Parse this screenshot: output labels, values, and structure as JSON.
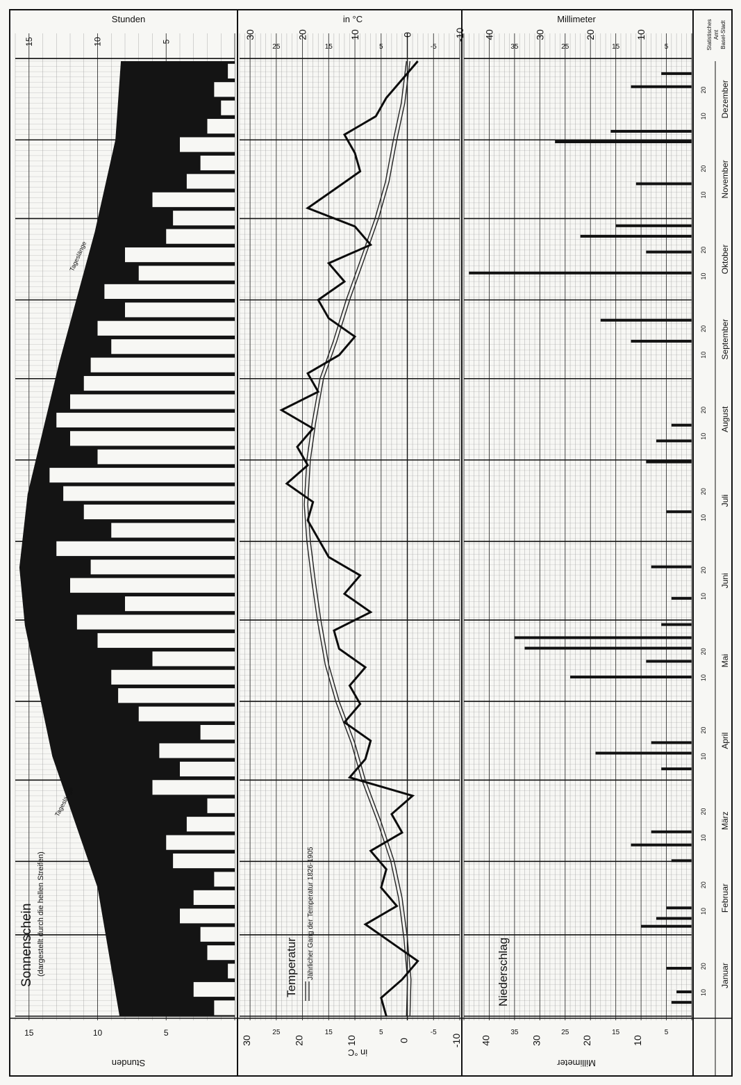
{
  "chart_data": [
    {
      "panel": "sunshine",
      "type": "bar",
      "title": "Sonnenschein",
      "subtitle": "(dargestellt durch die hellen Streifen)",
      "axis_title": "Stunden",
      "annotation_left": "Tageslänge",
      "annotation_right": "Tageslänge",
      "range": [
        0,
        16
      ],
      "major_ticks": [
        5,
        10,
        15
      ],
      "grid": true,
      "day_length": [
        {
          "day": 1,
          "hours": 8.4
        },
        {
          "day": 50,
          "hours": 10.0
        },
        {
          "day": 100,
          "hours": 13.3
        },
        {
          "day": 150,
          "hours": 15.3
        },
        {
          "day": 172,
          "hours": 15.7
        },
        {
          "day": 200,
          "hours": 15.1
        },
        {
          "day": 250,
          "hours": 12.8
        },
        {
          "day": 300,
          "hours": 10.2
        },
        {
          "day": 335,
          "hours": 8.7
        },
        {
          "day": 365,
          "hours": 8.3
        }
      ],
      "sunshine_hours_weekly": [
        1.5,
        3,
        0.5,
        2,
        2.5,
        4,
        3,
        1.5,
        4.5,
        5,
        3.5,
        2,
        6,
        4,
        5.5,
        2.5,
        7,
        8.5,
        9,
        6,
        10,
        11.5,
        8,
        12,
        10.5,
        13,
        9,
        11,
        12.5,
        13.5,
        10,
        12,
        13,
        12,
        11,
        10.5,
        9,
        10,
        8,
        9.5,
        7,
        8,
        5,
        4.5,
        6,
        3.5,
        2.5,
        4,
        2,
        1,
        1.5,
        0.5
      ]
    },
    {
      "panel": "temperature",
      "type": "line",
      "title": "Temperatur",
      "axis_title": "in °C",
      "legend": "Jährlicher Gang der Temperatur 1826-1905",
      "range": [
        -10,
        32
      ],
      "major_ticks": [
        -10,
        0,
        10,
        20,
        30
      ],
      "minor_labels": [
        -5,
        5,
        15,
        25
      ],
      "grid": true,
      "series": [
        {
          "name": "daily",
          "x": [
            1,
            8,
            15,
            22,
            29,
            36,
            43,
            50,
            57,
            64,
            71,
            78,
            85,
            92,
            99,
            106,
            113,
            120,
            127,
            134,
            141,
            148,
            155,
            162,
            169,
            176,
            183,
            190,
            197,
            204,
            211,
            218,
            225,
            232,
            239,
            246,
            253,
            260,
            267,
            274,
            281,
            288,
            295,
            302,
            309,
            316,
            323,
            330,
            337,
            344,
            351,
            358,
            365
          ],
          "y": [
            4,
            5,
            1,
            -2,
            3,
            8,
            2,
            5,
            4,
            7,
            1,
            3,
            -1,
            11,
            8,
            7,
            12,
            9,
            11,
            8,
            13,
            14,
            7,
            12,
            9,
            15,
            17,
            19,
            18,
            23,
            19,
            21,
            18,
            24,
            17,
            19,
            13,
            10,
            15,
            17,
            12,
            15,
            7,
            10,
            19,
            14,
            9,
            10,
            12,
            6,
            4,
            1,
            -2
          ]
        },
        {
          "name": "Jährlicher Gang der Temperatur 1826-1905",
          "x": [
            1,
            15,
            31,
            46,
            60,
            75,
            91,
            105,
            121,
            135,
            152,
            166,
            182,
            196,
            213,
            227,
            244,
            258,
            274,
            288,
            305,
            319,
            335,
            349,
            365
          ],
          "y": [
            -0.5,
            -0.7,
            0,
            1,
            2.5,
            5,
            8,
            10,
            13,
            15,
            16.5,
            17.5,
            18.5,
            19,
            18.5,
            17.5,
            16,
            13.5,
            11,
            8.5,
            5.5,
            3.5,
            2,
            0.5,
            -0.5
          ]
        }
      ]
    },
    {
      "panel": "precipitation",
      "type": "bar",
      "title": "Niederschlag",
      "axis_title": "Millimeter",
      "range": [
        0,
        45
      ],
      "major_ticks": [
        10,
        20,
        30,
        40
      ],
      "minor_labels": [
        5,
        15,
        25,
        35
      ],
      "grid": true,
      "rain_events": [
        {
          "day": 6,
          "mm": 4
        },
        {
          "day": 10,
          "mm": 3
        },
        {
          "day": 19,
          "mm": 5
        },
        {
          "day": 35,
          "mm": 10
        },
        {
          "day": 38,
          "mm": 7
        },
        {
          "day": 42,
          "mm": 5
        },
        {
          "day": 60,
          "mm": 4
        },
        {
          "day": 66,
          "mm": 12
        },
        {
          "day": 71,
          "mm": 8
        },
        {
          "day": 95,
          "mm": 6
        },
        {
          "day": 101,
          "mm": 19
        },
        {
          "day": 105,
          "mm": 8
        },
        {
          "day": 130,
          "mm": 24
        },
        {
          "day": 136,
          "mm": 9
        },
        {
          "day": 141,
          "mm": 33
        },
        {
          "day": 145,
          "mm": 35
        },
        {
          "day": 150,
          "mm": 6
        },
        {
          "day": 160,
          "mm": 4
        },
        {
          "day": 172,
          "mm": 8
        },
        {
          "day": 193,
          "mm": 5
        },
        {
          "day": 212,
          "mm": 9
        },
        {
          "day": 220,
          "mm": 7
        },
        {
          "day": 226,
          "mm": 4
        },
        {
          "day": 258,
          "mm": 12
        },
        {
          "day": 266,
          "mm": 18
        },
        {
          "day": 284,
          "mm": 44
        },
        {
          "day": 292,
          "mm": 9
        },
        {
          "day": 298,
          "mm": 22
        },
        {
          "day": 302,
          "mm": 15
        },
        {
          "day": 318,
          "mm": 11
        },
        {
          "day": 334,
          "mm": 27
        },
        {
          "day": 338,
          "mm": 16
        },
        {
          "day": 355,
          "mm": 12
        },
        {
          "day": 360,
          "mm": 6
        }
      ]
    }
  ],
  "months": [
    {
      "name": "Januar",
      "days": 31
    },
    {
      "name": "Februar",
      "days": 28
    },
    {
      "name": "März",
      "days": 31
    },
    {
      "name": "April",
      "days": 30
    },
    {
      "name": "Mai",
      "days": 31
    },
    {
      "name": "Juni",
      "days": 30
    },
    {
      "name": "Juli",
      "days": 31
    },
    {
      "name": "August",
      "days": 31
    },
    {
      "name": "September",
      "days": 30
    },
    {
      "name": "Oktober",
      "days": 31
    },
    {
      "name": "November",
      "days": 30
    },
    {
      "name": "Dezember",
      "days": 31
    }
  ],
  "day_tick_labels": [
    10,
    20
  ],
  "source": "Statistisches Amt Basel-Stadt"
}
